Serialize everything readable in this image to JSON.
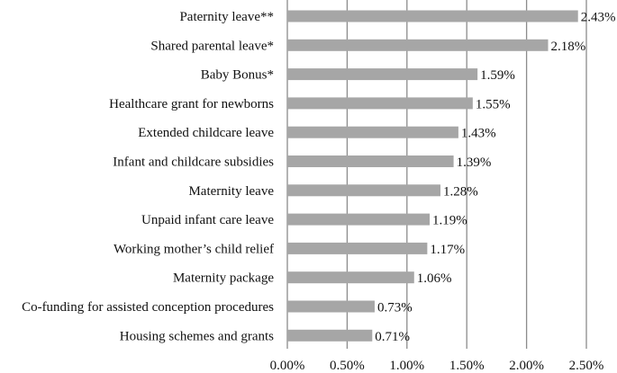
{
  "chart_data": {
    "type": "bar",
    "orientation": "horizontal",
    "title": "",
    "xlabel": "",
    "ylabel": "",
    "categories": [
      "Paternity leave**",
      "Shared parental leave*",
      "Baby Bonus*",
      "Healthcare grant for newborns",
      "Extended childcare leave",
      "Infant and childcare subsidies",
      "Maternity leave",
      "Unpaid infant care leave",
      "Working mother’s child relief",
      "Maternity package",
      "Co-funding for assisted conception procedures",
      "Housing schemes and grants"
    ],
    "values": [
      2.43,
      2.18,
      1.59,
      1.55,
      1.43,
      1.39,
      1.28,
      1.19,
      1.17,
      1.06,
      0.73,
      0.71
    ],
    "value_labels": [
      "2.43%",
      "2.18%",
      "1.59%",
      "1.55%",
      "1.43%",
      "1.39%",
      "1.28%",
      "1.19%",
      "1.17%",
      "1.06%",
      "0.73%",
      "0.71%"
    ],
    "xlim": [
      0,
      2.5
    ],
    "x_ticks": [
      0,
      0.5,
      1,
      1.5,
      2,
      2.5
    ],
    "x_tick_labels": [
      "0.00%",
      "0.50%",
      "1.00%",
      "1.50%",
      "2.00%",
      "2.50%"
    ],
    "grid": true,
    "legend": "none",
    "colors": {
      "bar": "#a6a6a6",
      "grid": "#8c8c8c",
      "text": "#111111"
    }
  }
}
